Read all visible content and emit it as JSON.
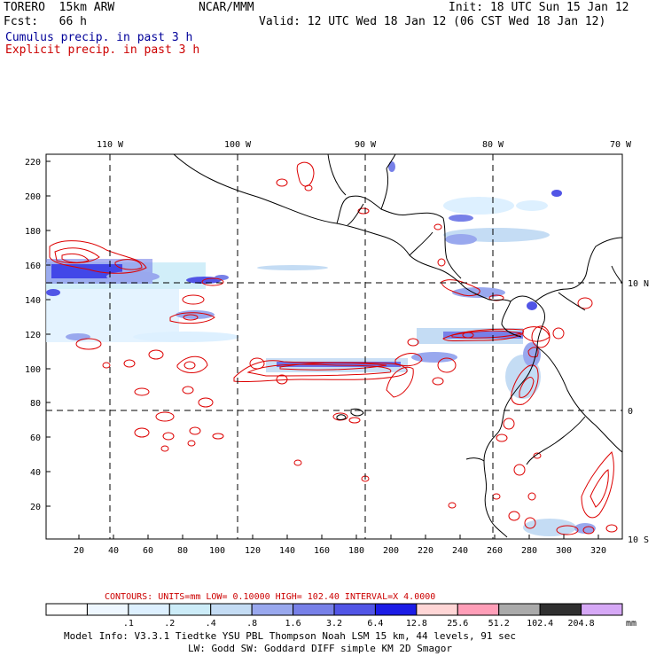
{
  "header": {
    "model": "TORERO  15km ARW",
    "fcst": "Fcst:   66 h",
    "org": "NCAR/MMM",
    "init": "Init: 18 UTC Sun 15 Jan 12",
    "valid": "Valid: 12 UTC Wed 18 Jan 12 (06 CST Wed 18 Jan 12)",
    "cumulus_label": "Cumulus precip. in past 3 h",
    "explicit_label": "Explicit precip. in past 3 h"
  },
  "colors": {
    "cumulus": "#000099",
    "explicit": "#cc0000",
    "contour": "#dd0000",
    "coast": "#000000",
    "grid": "#000000"
  },
  "map": {
    "x_ticks": [
      "20",
      "40",
      "60",
      "80",
      "100",
      "120",
      "140",
      "160",
      "180",
      "200",
      "220",
      "240",
      "260",
      "280",
      "300",
      "320"
    ],
    "y_ticks": [
      "20",
      "40",
      "60",
      "80",
      "100",
      "120",
      "140",
      "160",
      "180",
      "200",
      "220"
    ],
    "lon_labels": [
      "110 W",
      "100 W",
      "90 W",
      "80 W",
      "70 W"
    ],
    "lat_labels": [
      "10 N",
      "0",
      "10 S"
    ]
  },
  "footer": {
    "contours_line": "CONTOURS:  UNITS=mm  LOW= 0.10000      HIGH=  102.40      INTERVAL=X  4.0000",
    "scale_labels": [
      ".1",
      ".2",
      ".4",
      ".8",
      "1.6",
      "3.2",
      "6.4",
      "12.8",
      "25.6",
      "51.2",
      "102.4",
      "204.8"
    ],
    "scale_unit": "mm",
    "scale_colors": [
      "#ffffff",
      "#eef7ff",
      "#ddf0ff",
      "#ccecf8",
      "#c4dcf4",
      "#99a8ee",
      "#7780e8",
      "#5155e6",
      "#1c1ce6",
      "#ffd6d6",
      "#ff9eb8",
      "#aaaaaa",
      "#303030",
      "#d6a8f6"
    ],
    "info1": "Model Info: V3.3.1    Tiedtke YSU PBL  Thompson    Noah LSM  15 km,   44 levels,   91 sec",
    "info2": "LW: Godd SW: Goddard DIFF  simple KM  2D Smagor"
  }
}
